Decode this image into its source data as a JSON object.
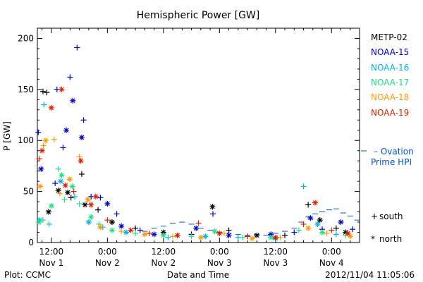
{
  "footer": {
    "left": "Plot: CCMC",
    "center": "Date and Time",
    "right": "2012/11/04 11:05:06"
  },
  "chart_data": {
    "type": "scatter",
    "title": "Hemispheric Power [GW]",
    "xlabel": "Date and Time",
    "ylabel": "P [GW]",
    "ylim": [
      0,
      210
    ],
    "xlim_hours": [
      -3,
      66
    ],
    "x_ticks": [
      {
        "hour": 0,
        "time": "12:00",
        "day": "Nov 1"
      },
      {
        "hour": 12,
        "time": "0:00",
        "day": "Nov 2"
      },
      {
        "hour": 24,
        "time": "12:00",
        "day": "Nov 2"
      },
      {
        "hour": 36,
        "time": "0:00",
        "day": "Nov 3"
      },
      {
        "hour": 48,
        "time": "12:00",
        "day": "Nov 3"
      },
      {
        "hour": 60,
        "time": "0:00",
        "day": "Nov 4"
      }
    ],
    "x_units": "hours since Nov 1 12:00 UT",
    "y_ticks": [
      0,
      50,
      100,
      150,
      200
    ],
    "legend": {
      "placement": "right",
      "satellites": [
        {
          "name": "METP-02",
          "color": "#000000"
        },
        {
          "name": "NOAA-15",
          "color": "#0000cc"
        },
        {
          "name": "NOAA-16",
          "color": "#00b4e6"
        },
        {
          "name": "NOAA-17",
          "color": "#20e080"
        },
        {
          "name": "NOAA-18",
          "color": "#ff9900"
        },
        {
          "name": "NOAA-19",
          "color": "#e02000"
        }
      ],
      "ovation_label_1": "– Ovation",
      "ovation_label_2": "Prime HPI",
      "ovation_color": "#0055cc",
      "south_label": "south",
      "north_label": "north",
      "south_symbol": "+",
      "north_symbol": "*"
    },
    "series": [
      {
        "name": "METP-02",
        "color": "#000000",
        "points": [
          {
            "h": -1.8,
            "v": 148,
            "m": "+"
          },
          {
            "h": -1.0,
            "v": 147,
            "m": "+"
          },
          {
            "h": -0.6,
            "v": 30,
            "m": "*"
          },
          {
            "h": 1.5,
            "v": 51,
            "m": "*"
          },
          {
            "h": 3.5,
            "v": 49,
            "m": "*"
          },
          {
            "h": 4.2,
            "v": 44,
            "m": "+"
          },
          {
            "h": 6.5,
            "v": 67,
            "m": "+"
          },
          {
            "h": 7.2,
            "v": 37,
            "m": "*"
          },
          {
            "h": 10,
            "v": 32,
            "m": "+"
          },
          {
            "h": 13,
            "v": 20,
            "m": "*"
          },
          {
            "h": 18,
            "v": 14,
            "m": "+"
          },
          {
            "h": 24,
            "v": 10,
            "m": "*"
          },
          {
            "h": 30,
            "v": 8,
            "m": "+"
          },
          {
            "h": 34.5,
            "v": 35,
            "m": "*"
          },
          {
            "h": 38,
            "v": 12,
            "m": "+"
          },
          {
            "h": 44,
            "v": 7,
            "m": "*"
          },
          {
            "h": 50,
            "v": 7,
            "m": "+"
          },
          {
            "h": 55,
            "v": 37,
            "m": "+"
          },
          {
            "h": 57.5,
            "v": 22,
            "m": "*"
          },
          {
            "h": 61,
            "v": 14,
            "m": "+"
          },
          {
            "h": 63,
            "v": 10,
            "m": "*"
          }
        ]
      },
      {
        "name": "NOAA-15",
        "color": "#0000cc",
        "points": [
          {
            "h": -2.8,
            "v": 108,
            "m": "+"
          },
          {
            "h": -2.2,
            "v": 72,
            "m": "*"
          },
          {
            "h": 0.8,
            "v": 58,
            "m": "+"
          },
          {
            "h": 1.2,
            "v": 150,
            "m": "+"
          },
          {
            "h": 2.5,
            "v": 93,
            "m": "+"
          },
          {
            "h": 3.2,
            "v": 110,
            "m": "*"
          },
          {
            "h": 4.0,
            "v": 162,
            "m": "+"
          },
          {
            "h": 4.6,
            "v": 139,
            "m": "*"
          },
          {
            "h": 5.5,
            "v": 191,
            "m": "+"
          },
          {
            "h": 6.5,
            "v": 103,
            "m": "*"
          },
          {
            "h": 6.9,
            "v": 120,
            "m": "+"
          },
          {
            "h": 8.5,
            "v": 45,
            "m": "+"
          },
          {
            "h": 10.5,
            "v": 44,
            "m": "+"
          },
          {
            "h": 12,
            "v": 38,
            "m": "*"
          },
          {
            "h": 14,
            "v": 28,
            "m": "+"
          },
          {
            "h": 15,
            "v": 16,
            "m": "*"
          },
          {
            "h": 19,
            "v": 12,
            "m": "+"
          },
          {
            "h": 22,
            "v": 8,
            "m": "*"
          },
          {
            "h": 27,
            "v": 7,
            "m": "+"
          },
          {
            "h": 31,
            "v": 14,
            "m": "*"
          },
          {
            "h": 34.6,
            "v": 28,
            "m": "+"
          },
          {
            "h": 38,
            "v": 7,
            "m": "*"
          },
          {
            "h": 42,
            "v": 6,
            "m": "+"
          },
          {
            "h": 47,
            "v": 8,
            "m": "*"
          },
          {
            "h": 52,
            "v": 10,
            "m": "+"
          },
          {
            "h": 55.5,
            "v": 24,
            "m": "*"
          },
          {
            "h": 58,
            "v": 13,
            "m": "+"
          },
          {
            "h": 62,
            "v": 20,
            "m": "*"
          },
          {
            "h": 64.5,
            "v": 13,
            "m": "+"
          }
        ]
      },
      {
        "name": "NOAA-16",
        "color": "#00b4e6",
        "points": [
          {
            "h": -2.5,
            "v": 22,
            "m": "*"
          },
          {
            "h": -1.6,
            "v": 135,
            "m": "+"
          },
          {
            "h": -0.5,
            "v": 18,
            "m": "+"
          },
          {
            "h": 2.0,
            "v": 60,
            "m": "*"
          },
          {
            "h": 5.0,
            "v": 45,
            "m": "+"
          },
          {
            "h": 8.0,
            "v": 20,
            "m": "*"
          },
          {
            "h": 11,
            "v": 15,
            "m": "+"
          },
          {
            "h": 16,
            "v": 10,
            "m": "*"
          },
          {
            "h": 25,
            "v": 5,
            "m": "+"
          },
          {
            "h": 33,
            "v": 6,
            "m": "*"
          },
          {
            "h": 40,
            "v": 5,
            "m": "+"
          },
          {
            "h": 48,
            "v": 4,
            "m": "*"
          },
          {
            "h": 54,
            "v": 55,
            "m": "+"
          },
          {
            "h": 57,
            "v": 18,
            "m": "*"
          },
          {
            "h": 61,
            "v": 8,
            "m": "+"
          }
        ]
      },
      {
        "name": "NOAA-17",
        "color": "#20e080",
        "points": [
          {
            "h": -2.7,
            "v": 20,
            "m": "*"
          },
          {
            "h": -1.8,
            "v": 22,
            "m": "+"
          },
          {
            "h": 0,
            "v": 36,
            "m": "*"
          },
          {
            "h": 1.5,
            "v": 72,
            "m": "+"
          },
          {
            "h": 2.2,
            "v": 66,
            "m": "*"
          },
          {
            "h": 2.8,
            "v": 42,
            "m": "+"
          },
          {
            "h": 4.5,
            "v": 55,
            "m": "*"
          },
          {
            "h": 6.0,
            "v": 38,
            "m": "+"
          },
          {
            "h": 8.5,
            "v": 25,
            "m": "*"
          },
          {
            "h": 10.2,
            "v": 18,
            "m": "+"
          },
          {
            "h": 13,
            "v": 12,
            "m": "*"
          },
          {
            "h": 18,
            "v": 9,
            "m": "+"
          },
          {
            "h": 24,
            "v": 7,
            "m": "*"
          },
          {
            "h": 30,
            "v": 6,
            "m": "+"
          },
          {
            "h": 35,
            "v": 11,
            "m": "*"
          },
          {
            "h": 41,
            "v": 5,
            "m": "+"
          },
          {
            "h": 47,
            "v": 5,
            "m": "*"
          },
          {
            "h": 53,
            "v": 12,
            "m": "+"
          },
          {
            "h": 58,
            "v": 10,
            "m": "*"
          },
          {
            "h": 63,
            "v": 7,
            "m": "+"
          }
        ]
      },
      {
        "name": "NOAA-18",
        "color": "#ff9900",
        "points": [
          {
            "h": -2.4,
            "v": 55,
            "m": "*"
          },
          {
            "h": -1.7,
            "v": 95,
            "m": "+"
          },
          {
            "h": -1.2,
            "v": 100,
            "m": "*"
          },
          {
            "h": 0.6,
            "v": 101,
            "m": "+"
          },
          {
            "h": 1.8,
            "v": 48,
            "m": "+"
          },
          {
            "h": 3.9,
            "v": 62,
            "m": "*"
          },
          {
            "h": 6.0,
            "v": 84,
            "m": "+"
          },
          {
            "h": 7.8,
            "v": 42,
            "m": "*"
          },
          {
            "h": 10.5,
            "v": 15,
            "m": "*"
          },
          {
            "h": 15,
            "v": 11,
            "m": "+"
          },
          {
            "h": 20,
            "v": 8,
            "m": "*"
          },
          {
            "h": 26,
            "v": 6,
            "m": "+"
          },
          {
            "h": 32,
            "v": 5,
            "m": "*"
          },
          {
            "h": 37,
            "v": 9,
            "m": "+"
          },
          {
            "h": 43,
            "v": 4,
            "m": "*"
          },
          {
            "h": 49,
            "v": 5,
            "m": "+"
          },
          {
            "h": 55,
            "v": 14,
            "m": "*"
          },
          {
            "h": 59,
            "v": 9,
            "m": "+"
          },
          {
            "h": 64,
            "v": 6,
            "m": "*"
          }
        ]
      },
      {
        "name": "NOAA-19",
        "color": "#e02000",
        "points": [
          {
            "h": -2.6,
            "v": 82,
            "m": "+"
          },
          {
            "h": -2.0,
            "v": 90,
            "m": "*"
          },
          {
            "h": 0.0,
            "v": 132,
            "m": "*"
          },
          {
            "h": 2.2,
            "v": 150,
            "m": "*"
          },
          {
            "h": 3.0,
            "v": 56,
            "m": "*"
          },
          {
            "h": 4.8,
            "v": 50,
            "m": "+"
          },
          {
            "h": 6.3,
            "v": 80,
            "m": "*"
          },
          {
            "h": 8.5,
            "v": 37,
            "m": "*"
          },
          {
            "h": 9.5,
            "v": 45,
            "m": "*"
          },
          {
            "h": 12,
            "v": 22,
            "m": "+"
          },
          {
            "h": 17,
            "v": 12,
            "m": "*"
          },
          {
            "h": 21,
            "v": 9,
            "m": "+"
          },
          {
            "h": 27,
            "v": 7,
            "m": "*"
          },
          {
            "h": 31.5,
            "v": 19,
            "m": "+"
          },
          {
            "h": 36,
            "v": 9,
            "m": "*"
          },
          {
            "h": 42,
            "v": 6,
            "m": "+"
          },
          {
            "h": 48,
            "v": 5,
            "m": "*"
          },
          {
            "h": 54,
            "v": 18,
            "m": "+"
          },
          {
            "h": 56.5,
            "v": 39,
            "m": "*"
          },
          {
            "h": 60,
            "v": 12,
            "m": "+"
          },
          {
            "h": 63.5,
            "v": 9,
            "m": "*"
          }
        ]
      }
    ],
    "ovation_hpi": [
      {
        "h": 20,
        "v": 11
      },
      {
        "h": 22,
        "v": 14
      },
      {
        "h": 24,
        "v": 16
      },
      {
        "h": 26,
        "v": 19
      },
      {
        "h": 28,
        "v": 20
      },
      {
        "h": 30,
        "v": 18
      },
      {
        "h": 32,
        "v": 14
      },
      {
        "h": 34,
        "v": 12
      },
      {
        "h": 36,
        "v": 10
      },
      {
        "h": 38,
        "v": 9
      },
      {
        "h": 40,
        "v": 8
      },
      {
        "h": 42,
        "v": 7
      },
      {
        "h": 44,
        "v": 8
      },
      {
        "h": 46,
        "v": 7
      },
      {
        "h": 48,
        "v": 9
      },
      {
        "h": 50,
        "v": 11
      },
      {
        "h": 52,
        "v": 14
      },
      {
        "h": 53.5,
        "v": 20
      },
      {
        "h": 55,
        "v": 25
      },
      {
        "h": 56.5,
        "v": 28
      },
      {
        "h": 58,
        "v": 30
      },
      {
        "h": 59.5,
        "v": 32
      },
      {
        "h": 61,
        "v": 33
      },
      {
        "h": 62.5,
        "v": 29
      },
      {
        "h": 64,
        "v": 26
      },
      {
        "h": 65.5,
        "v": 22
      }
    ]
  }
}
